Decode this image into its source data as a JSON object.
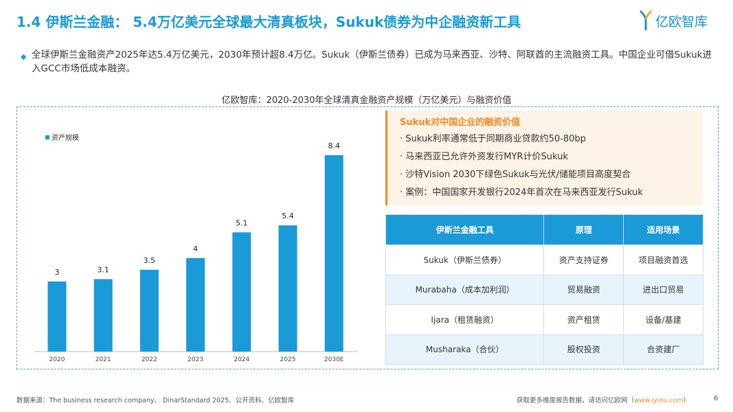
{
  "header": {
    "title": "1.4 伊斯兰金融： 5.4万亿美元全球最大清真板块，Sukuk债券为中企融资新工具",
    "logo_text": "亿欧智库"
  },
  "bullet": "全球伊斯兰金融资产2025年达5.4万亿美元，2030年预计超8.4万亿。Sukuk（伊斯兰债券）已成为马来西亚、沙特、阿联酋的主流融资工具。中国企业可借Sukuk进入GCC市场低成本融资。",
  "chart_data": {
    "type": "bar",
    "title": "亿欧智库：2020-2030年全球清真金融资产规模（万亿美元）与融资价值",
    "categories": [
      "2020",
      "2021",
      "2022",
      "2023",
      "2024",
      "2025",
      "2030E"
    ],
    "series": [
      {
        "name": "资产规模",
        "values": [
          3,
          3.1,
          3.5,
          4,
          5.1,
          5.4,
          8.4
        ]
      }
    ],
    "data_labels": [
      "3",
      "3.1",
      "3.5",
      "4",
      "5.1",
      "5.4",
      "8.4"
    ],
    "legend": "top-left",
    "grid": false,
    "color": "#1a9ad6",
    "ylim": [
      0,
      8.4
    ]
  },
  "panel": {
    "title": "Sukuk对中国企业的融资价值",
    "items": [
      "· Sukuk利率通常低于同期商业贷款约50-80bp",
      "· 马来西亚已允许外资发行MYR计价Sukuk",
      "· 沙特Vision 2030下绿色Sukuk与光伏/储能项目高度契合",
      "· 案例：中国国家开发银行2024年首次在马来西亚发行Sukuk"
    ]
  },
  "table": {
    "headers": [
      "伊斯兰金融工具",
      "原理",
      "适用场景"
    ],
    "rows": [
      [
        "Sukuk（伊斯兰债券）",
        "资产支持证券",
        "项目融资首选"
      ],
      [
        "Murabaha（成本加利润）",
        "贸易融资",
        "进出口贸易"
      ],
      [
        "Ijara（租赁融资）",
        "资产租赁",
        "设备/基建"
      ],
      [
        "Musharaka（合伙）",
        "股权投资",
        "合资建厂"
      ]
    ]
  },
  "footer": {
    "source": "数据来源：The business research company、 DinarStandard 2025、公开资料、亿欧智库",
    "more": "获取更多维度报告数据，请访问亿欧网（",
    "link": "www.iyiou.com",
    "close": "）",
    "page": "6"
  },
  "colors": {
    "accent": "#1a9ad6",
    "orange": "#f08a24"
  }
}
